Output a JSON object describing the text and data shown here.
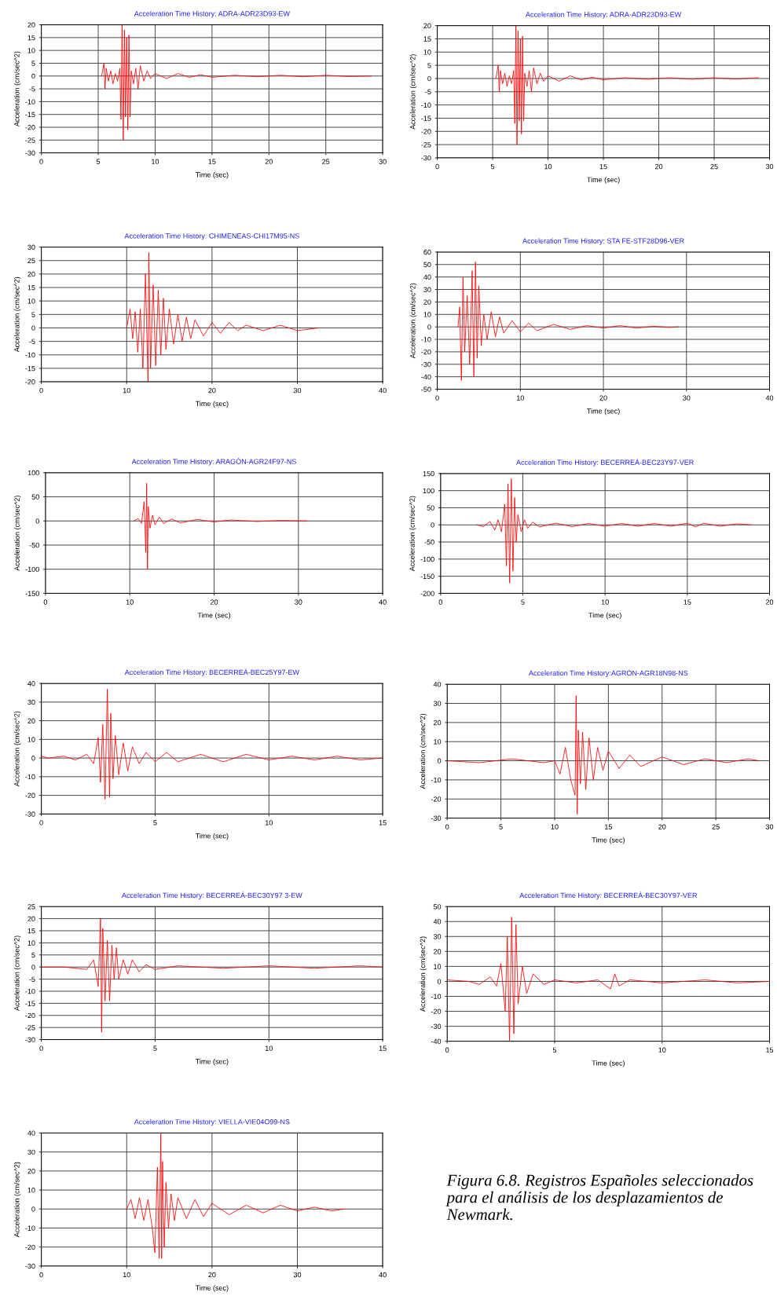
{
  "chart_data": [
    {
      "type": "line",
      "title": "Acceleration Time History: ADRA-ADR23D93-EW",
      "xlabel": "Time (sec)",
      "ylabel": "Acceleration (cm/sec^2)",
      "grid": true,
      "xlim": [
        0,
        30
      ],
      "xticks": [
        0,
        5,
        10,
        15,
        20,
        25,
        30
      ],
      "ylim": [
        -30,
        20
      ],
      "yticks": [
        -30,
        -25,
        -20,
        -15,
        -10,
        -5,
        0,
        5,
        10,
        15,
        20
      ],
      "series": [
        {
          "color": "#ff0000",
          "x": [
            5.3,
            5.5,
            5.6,
            5.7,
            5.9,
            6.1,
            6.3,
            6.5,
            6.7,
            6.9,
            7.0,
            7.1,
            7.2,
            7.3,
            7.4,
            7.5,
            7.6,
            7.7,
            7.8,
            7.9,
            8.1,
            8.3,
            8.5,
            8.7,
            9.0,
            9.3,
            9.6,
            10,
            11,
            12,
            13,
            14,
            15,
            17,
            19,
            21,
            23,
            25,
            27,
            29
          ],
          "values": [
            0,
            5,
            -5,
            3,
            -2,
            2,
            -3,
            1,
            -2,
            3,
            -17,
            20,
            -25,
            18,
            -16,
            15,
            -21,
            16,
            -16,
            2,
            -3,
            3,
            -5,
            4,
            -2,
            2,
            -1,
            1,
            -1,
            1,
            -0.5,
            0.5,
            -0.5,
            0.3,
            -0.3,
            0.3,
            -0.3,
            0.3,
            -0.2,
            0
          ]
        }
      ]
    },
    {
      "type": "line",
      "title": "Acceleration Time History: ADRA-ADR23D93-EW",
      "xlabel": "Time (sec)",
      "ylabel": "Acceleration (cm/sec^2)",
      "grid": true,
      "xlim": [
        0,
        30
      ],
      "xticks": [
        0,
        5,
        10,
        15,
        20,
        25,
        30
      ],
      "ylim": [
        -30,
        20
      ],
      "yticks": [
        -30,
        -25,
        -20,
        -15,
        -10,
        -5,
        0,
        5,
        10,
        15,
        20
      ],
      "series": [
        {
          "color": "#ff0000",
          "x": [
            5.3,
            5.5,
            5.6,
            5.7,
            5.9,
            6.1,
            6.3,
            6.5,
            6.7,
            6.9,
            7.0,
            7.1,
            7.2,
            7.3,
            7.4,
            7.5,
            7.6,
            7.7,
            7.8,
            7.9,
            8.1,
            8.3,
            8.5,
            8.7,
            9.0,
            9.3,
            9.6,
            10,
            11,
            12,
            13,
            14,
            15,
            17,
            19,
            21,
            23,
            25,
            27,
            29
          ],
          "values": [
            0,
            5,
            -5,
            3,
            -2,
            2,
            -3,
            1,
            -2,
            3,
            -17,
            20,
            -25,
            18,
            -16,
            15,
            -21,
            16,
            -16,
            2,
            -3,
            3,
            -5,
            4,
            -2,
            2,
            -1,
            1,
            -1,
            1,
            -0.5,
            0.5,
            -0.5,
            0.3,
            -0.3,
            0.3,
            -0.3,
            0.3,
            -0.2,
            0.3
          ]
        }
      ]
    },
    {
      "type": "line",
      "title": "Acceleration Time History: CHIMENEAS-CHI17M95-NS",
      "xlabel": "Time (sec)",
      "ylabel": "Acceleration (cm/sec^2)",
      "grid": true,
      "xlim": [
        0,
        40
      ],
      "xticks": [
        0,
        10,
        20,
        30,
        40
      ],
      "ylim": [
        -20,
        30
      ],
      "yticks": [
        -20,
        -15,
        -10,
        -5,
        0,
        5,
        10,
        15,
        20,
        25,
        30
      ],
      "series": [
        {
          "color": "#ff0000",
          "x": [
            10,
            10.4,
            10.7,
            11,
            11.3,
            11.6,
            11.9,
            12.2,
            12.5,
            12.6,
            12.8,
            13.1,
            13.4,
            13.7,
            14,
            14.3,
            14.6,
            15,
            15.5,
            16,
            16.5,
            17,
            17.5,
            18,
            19,
            20,
            21,
            22,
            23,
            24,
            26,
            28,
            30,
            32.5
          ],
          "values": [
            0,
            7,
            -4,
            6,
            -9,
            7,
            -15,
            20,
            -20,
            28,
            -15,
            16,
            -14,
            14,
            -10,
            11,
            -8,
            7,
            -6,
            5,
            -5,
            4,
            -4,
            3,
            -3,
            2,
            -2,
            2,
            -1,
            1,
            -1,
            1,
            -1,
            0
          ]
        }
      ]
    },
    {
      "type": "line",
      "title": "Acceleration Time History: STA FE-STF28D96-VER",
      "xlabel": "Time (sec)",
      "ylabel": "Acceleration (cm/sec^2)",
      "grid": true,
      "xlim": [
        0,
        40
      ],
      "xticks": [
        0,
        10,
        20,
        30,
        40
      ],
      "ylim": [
        -50,
        60
      ],
      "yticks": [
        -50,
        -40,
        -30,
        -20,
        -10,
        0,
        10,
        20,
        30,
        40,
        50,
        60
      ],
      "series": [
        {
          "color": "#ff0000",
          "x": [
            2.5,
            2.7,
            2.9,
            3.1,
            3.3,
            3.6,
            3.9,
            4.2,
            4.4,
            4.6,
            4.8,
            5.0,
            5.3,
            5.6,
            6,
            6.5,
            7,
            7.5,
            8,
            9,
            10,
            11,
            12,
            14,
            16,
            18,
            20,
            22,
            24,
            26,
            28,
            29
          ],
          "values": [
            0,
            16,
            -43,
            40,
            -20,
            25,
            -30,
            45,
            -40,
            52,
            -25,
            33,
            -15,
            10,
            -10,
            12,
            -8,
            8,
            -5,
            5,
            -4,
            3,
            -3,
            2,
            -2,
            1,
            -1,
            1,
            -1,
            0.5,
            -0.5,
            0
          ]
        }
      ]
    },
    {
      "type": "line",
      "title": "Acceleration Time History: ARAGÓN-AGR24F97-NS",
      "xlabel": "Time (sec)",
      "ylabel": "Acceleration (cm/sec^2)",
      "grid": true,
      "xlim": [
        0,
        40
      ],
      "xticks": [
        0,
        10,
        20,
        30,
        40
      ],
      "ylim": [
        -150,
        100
      ],
      "yticks": [
        -150,
        -100,
        -50,
        0,
        50,
        100
      ],
      "series": [
        {
          "color": "#ff0000",
          "x": [
            10.5,
            11,
            11.4,
            11.7,
            11.9,
            12.0,
            12.1,
            12.2,
            12.4,
            12.7,
            13,
            13.5,
            14,
            15,
            16,
            18,
            20,
            22,
            25,
            28,
            31
          ],
          "values": [
            0,
            5,
            -5,
            40,
            -65,
            78,
            -100,
            30,
            -15,
            12,
            -8,
            8,
            -5,
            4,
            -4,
            3,
            -2,
            2,
            -1,
            1,
            0
          ]
        }
      ]
    },
    {
      "type": "line",
      "title": "Acceleration Time History: BECERREÁ-BEC23Y97-VER",
      "xlabel": "Time (sec)",
      "ylabel": "Acceleration (cm/sec^2)",
      "grid": true,
      "xlim": [
        0,
        20
      ],
      "xticks": [
        0,
        5,
        10,
        15,
        20
      ],
      "ylim": [
        -200,
        150
      ],
      "yticks": [
        -200,
        -150,
        -100,
        -50,
        0,
        50,
        100,
        150
      ],
      "series": [
        {
          "color": "#ff0000",
          "x": [
            2.2,
            2.6,
            3.0,
            3.3,
            3.5,
            3.7,
            3.9,
            4.0,
            4.1,
            4.2,
            4.3,
            4.4,
            4.5,
            4.6,
            4.7,
            4.9,
            5.1,
            5.3,
            5.6,
            6,
            7,
            8,
            9,
            10,
            11,
            12,
            13,
            14,
            15,
            15.5,
            16,
            17,
            18,
            18.9
          ],
          "values": [
            0,
            -5,
            10,
            -15,
            15,
            -20,
            60,
            -120,
            120,
            -170,
            135,
            -135,
            80,
            -50,
            30,
            -20,
            15,
            -10,
            8,
            -6,
            5,
            -5,
            4,
            -4,
            4,
            -4,
            4,
            -4,
            5,
            -6,
            5,
            -4,
            3,
            0
          ]
        }
      ]
    },
    {
      "type": "line",
      "title": "Acceleration Time History: BECERREÁ-BEC25Y97-EW",
      "xlabel": "Time (sec)",
      "ylabel": "Acceleration (cm/sec^2)",
      "grid": true,
      "xlim": [
        0,
        15
      ],
      "xticks": [
        0,
        5,
        10,
        15
      ],
      "ylim": [
        -30,
        40
      ],
      "yticks": [
        -30,
        -20,
        -10,
        0,
        10,
        20,
        30,
        40
      ],
      "series": [
        {
          "color": "#ff0000",
          "x": [
            0,
            0.3,
            1,
            1.5,
            2,
            2.3,
            2.5,
            2.6,
            2.7,
            2.8,
            2.9,
            3.0,
            3.05,
            3.15,
            3.25,
            3.4,
            3.6,
            3.8,
            4.0,
            4.3,
            4.6,
            5,
            5.5,
            6,
            7,
            8,
            9,
            10,
            11,
            12,
            13,
            14,
            15
          ],
          "values": [
            1,
            0,
            1,
            -1,
            2,
            -3,
            11,
            -13,
            18,
            -22,
            37,
            -21,
            24,
            -11,
            12,
            -9,
            8,
            -7,
            6,
            -3,
            3,
            -2,
            3,
            -2,
            2,
            -2,
            2,
            -1,
            1,
            -1,
            1,
            -1,
            0
          ]
        }
      ]
    },
    {
      "type": "line",
      "title": "Acceleration Time History:AGRÓN-AGR18N98-NS",
      "xlabel": "Time (sec)",
      "ylabel": "Acceleration (cm/sec^2)",
      "grid": true,
      "xlim": [
        0,
        30
      ],
      "xticks": [
        0,
        5,
        10,
        15,
        20,
        25,
        30
      ],
      "ylim": [
        -30,
        40
      ],
      "yticks": [
        -30,
        -20,
        -10,
        0,
        10,
        20,
        30,
        40
      ],
      "series": [
        {
          "color": "#ff0000",
          "x": [
            0,
            3,
            6,
            9,
            10,
            10.5,
            11,
            11.5,
            11.9,
            12.0,
            12.1,
            12.2,
            12.4,
            12.6,
            12.9,
            13.2,
            13.6,
            14,
            14.5,
            15,
            16,
            17,
            18,
            20,
            22,
            24,
            26,
            28,
            29
          ],
          "values": [
            0,
            -1,
            1,
            -1,
            0,
            -7,
            7,
            -10,
            -18,
            34,
            -28,
            16,
            -12,
            15,
            -15,
            12,
            -10,
            7,
            -5,
            5,
            -4,
            3,
            -3,
            2,
            -2,
            1,
            -1,
            1,
            0
          ]
        }
      ]
    },
    {
      "type": "line",
      "title": "Acceleration Time History: BECERREÁ-BEC30Y97 3-EW",
      "xlabel": "Time (sec)",
      "ylabel": "Acceleration (cm/sec^2)",
      "grid": true,
      "xlim": [
        0,
        15
      ],
      "xticks": [
        0,
        5,
        10,
        15
      ],
      "ylim": [
        -30,
        25
      ],
      "yticks": [
        -30,
        -25,
        -20,
        -15,
        -10,
        -5,
        0,
        5,
        10,
        15,
        20,
        25
      ],
      "series": [
        {
          "color": "#ff0000",
          "x": [
            0,
            1,
            2,
            2.3,
            2.5,
            2.6,
            2.65,
            2.7,
            2.8,
            2.9,
            3.0,
            3.1,
            3.2,
            3.3,
            3.4,
            3.6,
            3.8,
            4,
            4.3,
            4.6,
            5,
            6,
            8,
            10,
            12,
            14,
            15
          ],
          "values": [
            0,
            0,
            -1,
            3,
            -8,
            20,
            -27,
            16,
            -14,
            11,
            -14,
            9,
            -5,
            8,
            -5,
            3,
            -3,
            3,
            -2,
            1,
            -1,
            0.5,
            -0.5,
            0.5,
            -0.5,
            0.5,
            0
          ]
        }
      ]
    },
    {
      "type": "line",
      "title": "Acceleration Time History: BECERREÁ-BEC30Y97-VER",
      "xlabel": "Time (sec)",
      "ylabel": "Acceleration (cm/sec^2)",
      "grid": true,
      "xlim": [
        0,
        15
      ],
      "xticks": [
        0,
        5,
        10,
        15
      ],
      "ylim": [
        -40,
        50
      ],
      "yticks": [
        -40,
        -30,
        -20,
        -10,
        0,
        10,
        20,
        30,
        40,
        50
      ],
      "series": [
        {
          "color": "#ff0000",
          "x": [
            0,
            1,
            1.5,
            2,
            2.3,
            2.5,
            2.7,
            2.8,
            2.9,
            3.0,
            3.1,
            3.2,
            3.3,
            3.5,
            3.7,
            4,
            4.5,
            5,
            6,
            7,
            7.6,
            7.8,
            8,
            8.5,
            10,
            12,
            13.5,
            15
          ],
          "values": [
            1,
            0,
            -2,
            3,
            -3,
            12,
            -20,
            30,
            -40,
            43,
            -35,
            38,
            -15,
            10,
            -8,
            5,
            -2,
            1,
            -1,
            1,
            -5,
            5,
            -3,
            1,
            -1,
            1,
            -1,
            0
          ]
        }
      ]
    },
    {
      "type": "line",
      "title": "Acceleration Time History: VIELLA-VIE04O99-NS",
      "xlabel": "Time (sec)",
      "ylabel": "Acceleration (cm/sec^2)",
      "grid": true,
      "xlim": [
        0,
        40
      ],
      "xticks": [
        0,
        10,
        20,
        30,
        40
      ],
      "ylim": [
        -30,
        40
      ],
      "yticks": [
        -30,
        -20,
        -10,
        0,
        10,
        20,
        30,
        40
      ],
      "annotations": [
        "Figura 6.8. Registros Españoles seleccionados para el análisis de los desplazamientos de Newmark."
      ],
      "series": [
        {
          "color": "#ff0000",
          "x": [
            10,
            10.5,
            11,
            11.5,
            12,
            12.5,
            13,
            13.3,
            13.6,
            13.8,
            14.0,
            14.1,
            14.2,
            14.4,
            14.6,
            14.9,
            15.2,
            15.6,
            16,
            17,
            18,
            19,
            20,
            22,
            24,
            26,
            28,
            30,
            32,
            34,
            35.5
          ],
          "values": [
            0,
            5,
            -5,
            6,
            -6,
            5,
            -10,
            -23,
            22,
            -26,
            40,
            -26,
            25,
            -20,
            14,
            -10,
            8,
            -6,
            6,
            -5,
            5,
            -4,
            3,
            -3,
            2,
            -2,
            2,
            -1,
            1,
            -1,
            0
          ]
        }
      ]
    }
  ]
}
